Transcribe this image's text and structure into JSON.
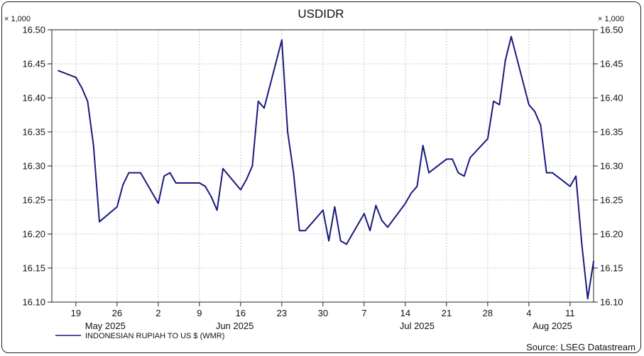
{
  "chart_data": {
    "type": "line",
    "title": "USDIDR",
    "unit_label": "× 1,000",
    "ylim": [
      16.1,
      16.5
    ],
    "y_ticks": [
      "16.10",
      "16.15",
      "16.20",
      "16.25",
      "16.30",
      "16.35",
      "16.40",
      "16.45",
      "16.50"
    ],
    "x_ticks": [
      "19",
      "26",
      "2",
      "9",
      "16",
      "23",
      "30",
      "7",
      "14",
      "21",
      "28",
      "4",
      "11"
    ],
    "month_labels": [
      "May 2025",
      "Jun 2025",
      "Jul 2025",
      "Aug 2025"
    ],
    "grid": true,
    "line_color": "#1a1a7e",
    "series": [
      {
        "name": "INDONESIAN RUPIAH TO US $ (WMR)",
        "x": [
          "2025-05-16",
          "2025-05-19",
          "2025-05-20",
          "2025-05-21",
          "2025-05-22",
          "2025-05-23",
          "2025-05-26",
          "2025-05-27",
          "2025-05-28",
          "2025-05-29",
          "2025-05-30",
          "2025-06-02",
          "2025-06-03",
          "2025-06-04",
          "2025-06-05",
          "2025-06-06",
          "2025-06-09",
          "2025-06-10",
          "2025-06-11",
          "2025-06-12",
          "2025-06-13",
          "2025-06-16",
          "2025-06-17",
          "2025-06-18",
          "2025-06-19",
          "2025-06-20",
          "2025-06-23",
          "2025-06-24",
          "2025-06-25",
          "2025-06-26",
          "2025-06-27",
          "2025-06-30",
          "2025-07-01",
          "2025-07-02",
          "2025-07-03",
          "2025-07-04",
          "2025-07-07",
          "2025-07-08",
          "2025-07-09",
          "2025-07-10",
          "2025-07-11",
          "2025-07-14",
          "2025-07-15",
          "2025-07-16",
          "2025-07-17",
          "2025-07-18",
          "2025-07-21",
          "2025-07-22",
          "2025-07-23",
          "2025-07-24",
          "2025-07-25",
          "2025-07-28",
          "2025-07-29",
          "2025-07-30",
          "2025-07-31",
          "2025-08-01",
          "2025-08-04",
          "2025-08-05",
          "2025-08-06",
          "2025-08-07",
          "2025-08-08",
          "2025-08-11",
          "2025-08-12",
          "2025-08-13",
          "2025-08-14",
          "2025-08-15"
        ],
        "values": [
          16.44,
          16.43,
          16.415,
          16.395,
          16.33,
          16.218,
          16.24,
          16.272,
          16.29,
          16.29,
          16.29,
          16.245,
          16.285,
          16.29,
          16.275,
          16.275,
          16.275,
          16.27,
          16.255,
          16.235,
          16.296,
          16.265,
          16.28,
          16.3,
          16.395,
          16.385,
          16.485,
          16.35,
          16.29,
          16.205,
          16.205,
          16.235,
          16.19,
          16.24,
          16.19,
          16.185,
          16.23,
          16.205,
          16.242,
          16.22,
          16.21,
          16.245,
          16.26,
          16.27,
          16.33,
          16.29,
          16.31,
          16.31,
          16.29,
          16.285,
          16.312,
          16.34,
          16.395,
          16.39,
          16.455,
          16.49,
          16.39,
          16.38,
          16.36,
          16.29,
          16.29,
          16.27,
          16.285,
          16.185,
          16.105,
          16.16
        ]
      }
    ]
  },
  "legend": {
    "label": "INDONESIAN RUPIAH TO US $ (WMR)"
  },
  "source": "Source: LSEG Datastream"
}
